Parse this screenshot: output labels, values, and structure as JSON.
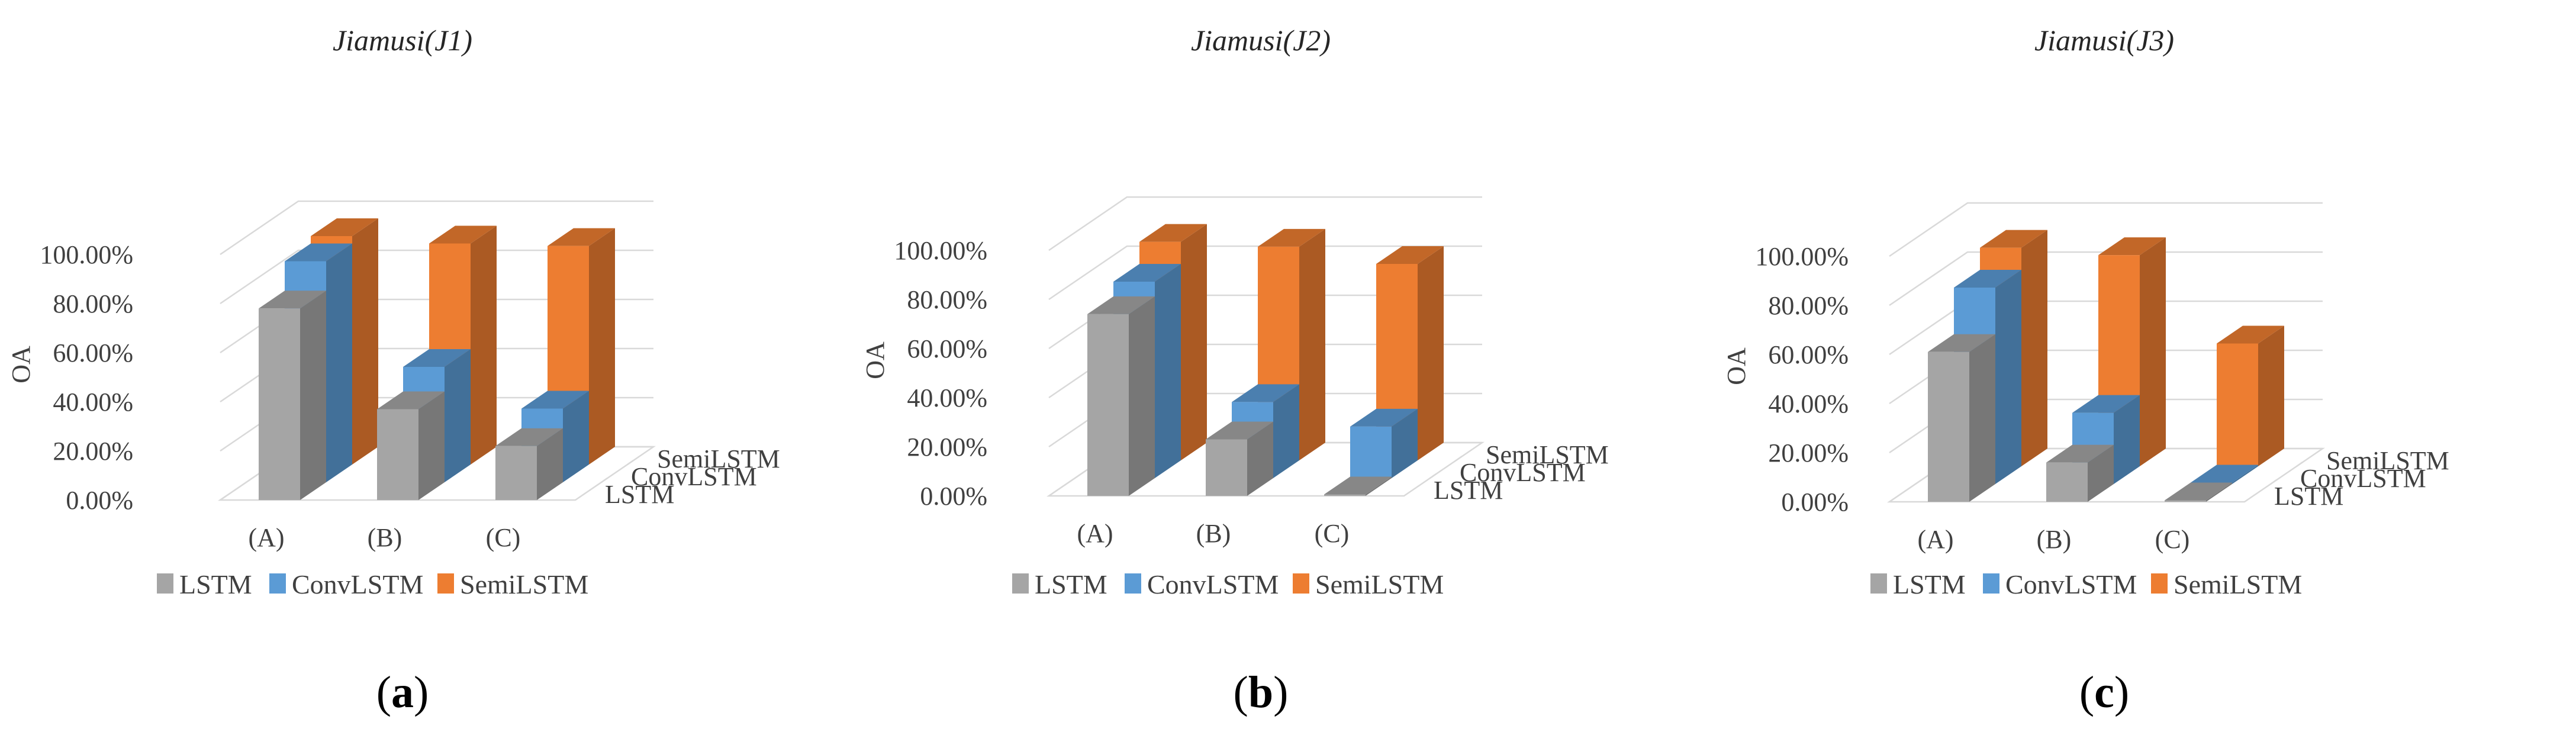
{
  "figure": {
    "y_axis_label": "OA",
    "y_tick_labels": [
      "0.00%",
      "20.00%",
      "40.00%",
      "60.00%",
      "80.00%",
      "100.00%"
    ],
    "legend": [
      "LSTM",
      "ConvLSTM",
      "SemiLSTM"
    ],
    "colors": {
      "LSTM": "#a5a5a5",
      "ConvLSTM": "#5b9bd5",
      "SemiLSTM": "#ed7d31",
      "grid": "#d9d9d9"
    }
  },
  "chart_data": [
    {
      "type": "bar",
      "subtype": "3d-column",
      "title": "Jiamusi(J1)",
      "caption": "a",
      "categories": [
        "(A)",
        "(B)",
        "(C)"
      ],
      "depth_labels": [
        "LSTM",
        "ConvLSTM",
        "SemiLSTM"
      ],
      "ylabel": "OA",
      "ylim": [
        0,
        100
      ],
      "series": [
        {
          "name": "LSTM",
          "values": [
            78,
            37,
            22
          ]
        },
        {
          "name": "ConvLSTM",
          "values": [
            90,
            47,
            30
          ]
        },
        {
          "name": "SemiLSTM",
          "values": [
            93,
            90,
            89
          ]
        }
      ]
    },
    {
      "type": "bar",
      "subtype": "3d-column",
      "title": "Jiamusi(J2)",
      "caption": "b",
      "categories": [
        "(A)",
        "(B)",
        "(C)"
      ],
      "depth_labels": [
        "LSTM",
        "ConvLSTM",
        "SemiLSTM"
      ],
      "ylabel": "OA",
      "ylim": [
        0,
        100
      ],
      "series": [
        {
          "name": "LSTM",
          "values": [
            74,
            23,
            0
          ]
        },
        {
          "name": "ConvLSTM",
          "values": [
            80,
            31,
            21
          ]
        },
        {
          "name": "SemiLSTM",
          "values": [
            89,
            87,
            80
          ]
        }
      ]
    },
    {
      "type": "bar",
      "subtype": "3d-column",
      "title": "Jiamusi(J3)",
      "caption": "c",
      "categories": [
        "(A)",
        "(B)",
        "(C)"
      ],
      "depth_labels": [
        "LSTM",
        "ConvLSTM",
        "SemiLSTM"
      ],
      "ylabel": "OA",
      "ylim": [
        0,
        100
      ],
      "series": [
        {
          "name": "LSTM",
          "values": [
            61,
            16,
            0
          ]
        },
        {
          "name": "ConvLSTM",
          "values": [
            80,
            29,
            0
          ]
        },
        {
          "name": "SemiLSTM",
          "values": [
            89,
            86,
            50
          ]
        }
      ]
    }
  ]
}
